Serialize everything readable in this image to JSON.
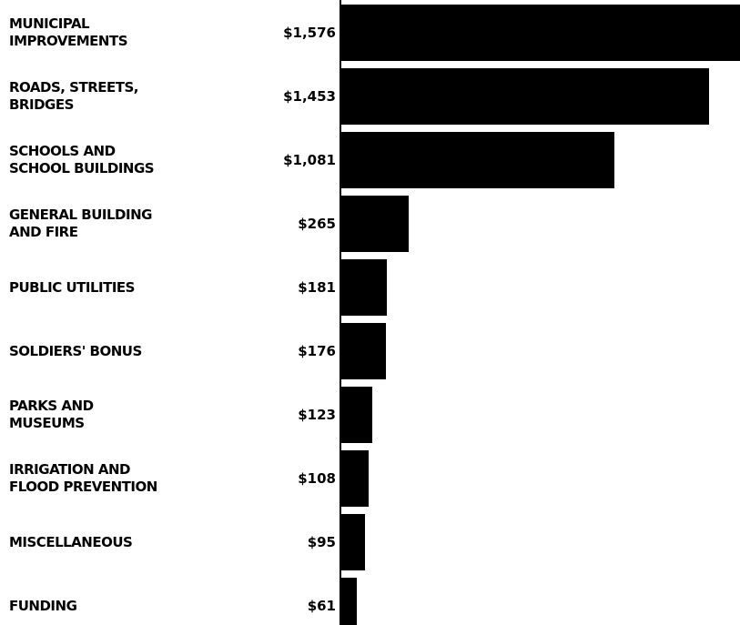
{
  "chart_data": {
    "type": "bar",
    "orientation": "horizontal",
    "categories": [
      "MUNICIPAL\nIMPROVEMENTS",
      "ROADS, STREETS,\nBRIDGES",
      "SCHOOLS AND\nSCHOOL BUILDINGS",
      "GENERAL BUILDING\nAND FIRE",
      "PUBLIC UTILITIES",
      "SOLDIERS' BONUS",
      "PARKS AND\nMUSEUMS",
      "IRRIGATION AND\nFLOOD PREVENTION",
      "MISCELLANEOUS",
      "FUNDING"
    ],
    "values": [
      1576,
      1453,
      1081,
      265,
      181,
      176,
      123,
      108,
      95,
      61
    ],
    "value_labels": [
      "$1,576",
      "$1,453",
      "$1,081",
      "$265",
      "$181",
      "$176",
      "$123",
      "$108",
      "$95",
      "$61"
    ],
    "color": "#000000"
  }
}
